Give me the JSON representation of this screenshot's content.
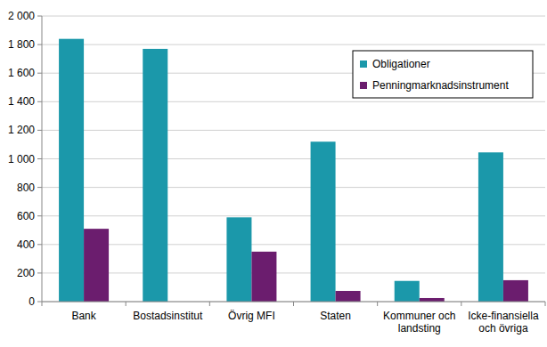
{
  "chart_data": {
    "type": "bar",
    "categories": [
      "Bank",
      "Bostadsinstitut",
      "Övrig MFI",
      "Staten",
      "Kommuner och landsting",
      "Icke-finansiella och övriga"
    ],
    "series": [
      {
        "name": "Obligationer",
        "color": "#1b98aa",
        "values": [
          1840,
          1770,
          590,
          1120,
          145,
          1045
        ]
      },
      {
        "name": "Penningmarknadsinstrument",
        "color": "#6b1d6e",
        "values": [
          510,
          0,
          350,
          75,
          25,
          150
        ]
      }
    ],
    "ylim": [
      0,
      2000
    ],
    "yticks": [
      0,
      200,
      400,
      600,
      800,
      {
        "value": 1000,
        "label": "1 000"
      },
      {
        "value": 1200,
        "label": "1 200"
      },
      {
        "value": 1400,
        "label": "1 400"
      },
      {
        "value": 1600,
        "label": "1 600"
      },
      {
        "value": 1800,
        "label": "1 800"
      },
      {
        "value": 2000,
        "label": "2 000"
      }
    ],
    "grid": true,
    "legend": "upper-right"
  }
}
